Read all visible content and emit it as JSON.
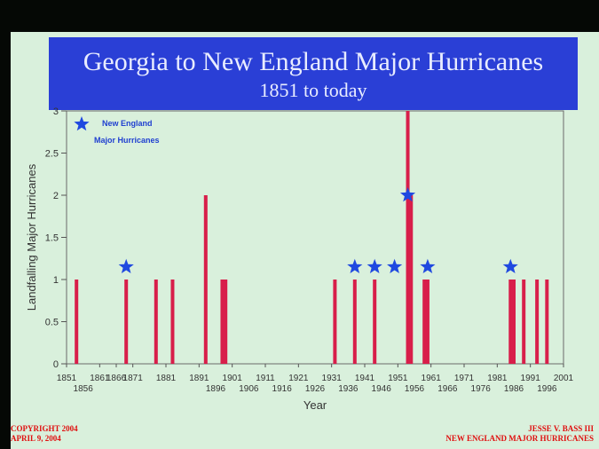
{
  "header": {
    "title": "Georgia to New England Major Hurricanes",
    "subtitle": "1851 to today"
  },
  "footer": {
    "left_line1": "COPYRIGHT 2004",
    "left_line2": "APRIL 9, 2004",
    "right_line1": "JESSE V. BASS III",
    "right_line2": "NEW ENGLAND MAJOR HURRICANES"
  },
  "colors": {
    "slide_background": "#d9f0dc",
    "banner_background": "#2a3fd6",
    "bar": "#d81e4a",
    "star": "#1f49e0",
    "footer_text": "#e01010"
  },
  "chart_data": {
    "type": "bar",
    "title": "",
    "xlabel": "Year",
    "ylabel": "Landfalling Major Hurricanes",
    "xlim": [
      1851,
      2001
    ],
    "ylim": [
      0,
      3
    ],
    "y_ticks": [
      "0",
      "0.5",
      "1",
      "1.5",
      "2",
      "2.5",
      "3"
    ],
    "y_tick_values": [
      0,
      0.5,
      1,
      1.5,
      2,
      2.5,
      3
    ],
    "x_ticks_upper": [
      "1851",
      "1861",
      "1866",
      "1871",
      "1881",
      "1891",
      "1901",
      "1911",
      "1921",
      "1931",
      "1941",
      "1951",
      "1961",
      "1971",
      "1981",
      "1991",
      "2001"
    ],
    "x_ticks_upper_values": [
      1851,
      1861,
      1866,
      1871,
      1881,
      1891,
      1901,
      1911,
      1921,
      1931,
      1941,
      1951,
      1961,
      1971,
      1981,
      1991,
      2001
    ],
    "x_ticks_lower": [
      "1856",
      "1896",
      "1906",
      "1916",
      "1926",
      "1936",
      "1946",
      "1956",
      "1966",
      "1976",
      "1986",
      "1996"
    ],
    "x_ticks_lower_values": [
      1856,
      1896,
      1906,
      1916,
      1926,
      1936,
      1946,
      1956,
      1966,
      1976,
      1986,
      1996
    ],
    "legend": {
      "label_line1": "New England",
      "label_line2": "Major Hurricanes",
      "placement": "top-left"
    },
    "series": [
      {
        "name": "",
        "x": [
          1854,
          1869,
          1878,
          1883,
          1893,
          1898,
          1899,
          1932,
          1938,
          1944,
          1954,
          1955,
          1959,
          1960,
          1985,
          1986,
          1989,
          1993,
          1996
        ],
        "values": [
          1,
          1,
          1,
          1,
          2,
          1,
          1,
          1,
          1,
          1,
          3,
          2,
          1,
          1,
          1,
          1,
          1,
          1,
          1
        ]
      }
    ],
    "new_england_markers": [
      {
        "x": 1869,
        "y": 1.15
      },
      {
        "x": 1938,
        "y": 1.15
      },
      {
        "x": 1944,
        "y": 1.15
      },
      {
        "x": 1950,
        "y": 1.15
      },
      {
        "x": 1954,
        "y": 2.0
      },
      {
        "x": 1960,
        "y": 1.15
      },
      {
        "x": 1985,
        "y": 1.15
      }
    ]
  }
}
